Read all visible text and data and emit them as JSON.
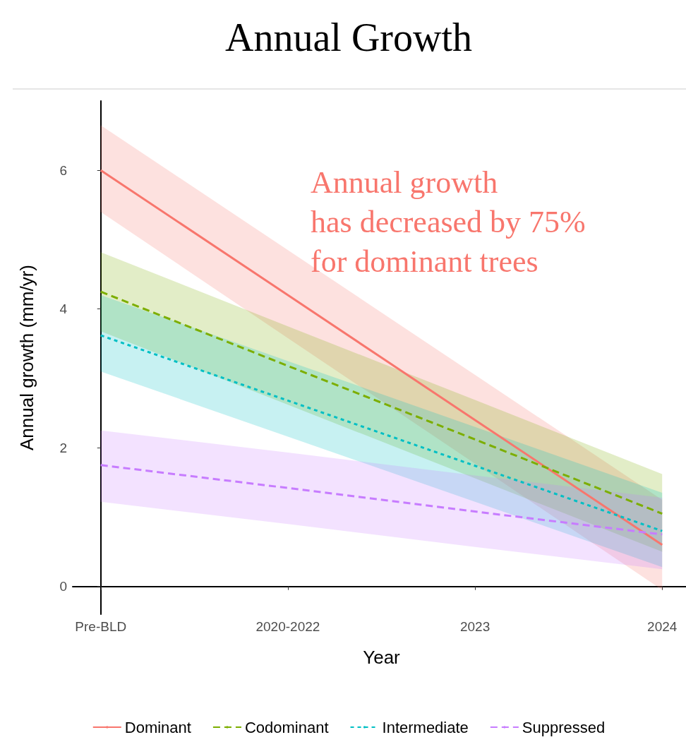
{
  "chart_data": {
    "type": "line",
    "title": "Annual Growth",
    "xlabel": "Year",
    "ylabel": "Annual growth (mm/yr)",
    "categories": [
      "Pre-BLD",
      "2020-2022",
      "2023",
      "2024"
    ],
    "series": [
      {
        "name": "Dominant",
        "color": "#f8766d",
        "line_style": "solid",
        "values": [
          6.0,
          4.2,
          2.4,
          0.6
        ],
        "lower": [
          5.4,
          3.58,
          1.77,
          -0.05
        ],
        "upper": [
          6.65,
          4.85,
          3.05,
          1.25
        ]
      },
      {
        "name": "Codominant",
        "color": "#7cae00",
        "line_style": "dashed",
        "values": [
          4.25,
          3.18,
          2.12,
          1.05
        ],
        "lower": [
          3.68,
          2.62,
          1.56,
          0.5
        ],
        "upper": [
          4.82,
          3.75,
          2.69,
          1.62
        ]
      },
      {
        "name": "Intermediate",
        "color": "#00bfc4",
        "line_style": "dotted",
        "values": [
          3.62,
          2.68,
          1.74,
          0.8
        ],
        "lower": [
          3.1,
          2.16,
          1.22,
          0.28
        ],
        "upper": [
          4.2,
          3.25,
          2.3,
          1.35
        ]
      },
      {
        "name": "Suppressed",
        "color": "#c77cff",
        "line_style": "dashed",
        "values": [
          1.75,
          1.42,
          1.08,
          0.75
        ],
        "lower": [
          1.22,
          0.9,
          0.57,
          0.25
        ],
        "upper": [
          2.25,
          1.93,
          1.6,
          1.28
        ]
      }
    ],
    "ylim": [
      -0.4,
      7
    ],
    "yticks": [
      0,
      2,
      4,
      6
    ],
    "grid": false,
    "legend": "bottom",
    "marker": "none",
    "annotations": [
      "Annual growth\nhas decreased by 75%\nfor dominant trees"
    ]
  }
}
